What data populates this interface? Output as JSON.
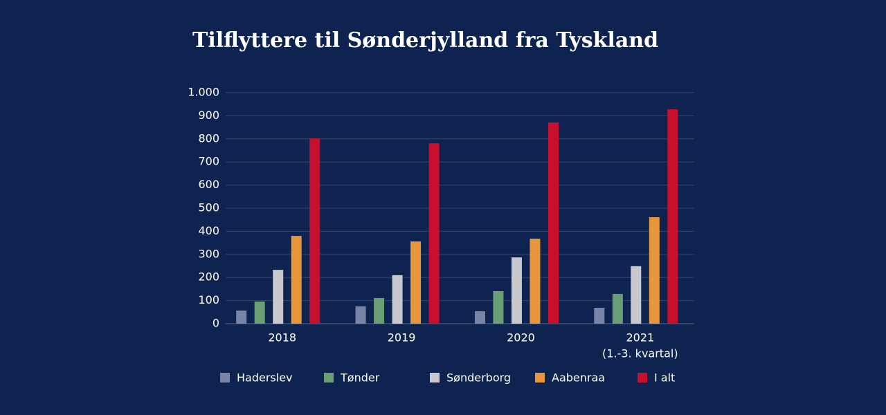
{
  "chart_data": {
    "type": "bar",
    "title": "Tilflyttere til Sønderjylland fra Tyskland",
    "categories": [
      "2018",
      "2019",
      "2020",
      "2021"
    ],
    "last_category_note": "(1.-3. kvartal)",
    "series": [
      {
        "name": "Haderslev",
        "color": "#7a84a6",
        "values": [
          57,
          75,
          54,
          69
        ]
      },
      {
        "name": "Tønder",
        "color": "#6a9e74",
        "values": [
          96,
          111,
          141,
          129
        ]
      },
      {
        "name": "Sønderborg",
        "color": "#c9c9cd",
        "values": [
          233,
          210,
          287,
          249
        ]
      },
      {
        "name": "Aabenraa",
        "color": "#e8963c",
        "values": [
          380,
          356,
          368,
          461
        ]
      },
      {
        "name": "I alt",
        "color": "#c8102e",
        "values": [
          802,
          781,
          871,
          928
        ]
      }
    ],
    "ylim": [
      0,
      1000
    ],
    "yticks": [
      0,
      100,
      200,
      300,
      400,
      500,
      600,
      700,
      800,
      900,
      {
        "value": 1000,
        "label": "1.000"
      }
    ],
    "grid": true,
    "legend": "bottom"
  }
}
